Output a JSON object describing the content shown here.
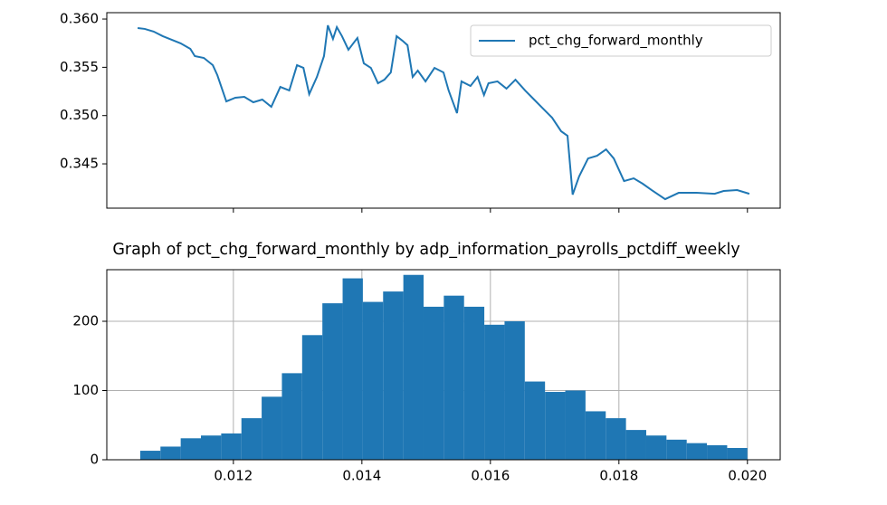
{
  "chart_data": [
    {
      "type": "line",
      "xlim": [
        0.01003,
        0.02051
      ],
      "ylim": [
        0.34041,
        0.36066
      ],
      "xticks": [
        0.012,
        0.014,
        0.016,
        0.018,
        0.02
      ],
      "yticks": [
        0.345,
        {
          "value": 0.35,
          "label": "0.350"
        },
        0.355,
        {
          "value": 0.36,
          "label": "0.360"
        }
      ],
      "legend": "upper right",
      "series": [
        {
          "name": "pct_chg_forward_monthly",
          "color": "#1f77b4",
          "x": [
            0.01051,
            0.01062,
            0.01076,
            0.0109,
            0.01104,
            0.01118,
            0.01133,
            0.0114,
            0.01154,
            0.01168,
            0.01175,
            0.01189,
            0.01203,
            0.01217,
            0.01231,
            0.01245,
            0.01259,
            0.01273,
            0.01287,
            0.01299,
            0.01309,
            0.01318,
            0.0133,
            0.01341,
            0.01347,
            0.01355,
            0.01361,
            0.01369,
            0.01379,
            0.01393,
            0.01403,
            0.01414,
            0.01425,
            0.01435,
            0.01445,
            0.01454,
            0.01463,
            0.01471,
            0.01479,
            0.01487,
            0.01499,
            0.01513,
            0.01527,
            0.01535,
            0.01548,
            0.01555,
            0.01569,
            0.0158,
            0.0159,
            0.01597,
            0.01611,
            0.01625,
            0.01639,
            0.01654,
            0.01668,
            0.01682,
            0.01696,
            0.0171,
            0.0172,
            0.01728,
            0.01738,
            0.01752,
            0.01766,
            0.0178,
            0.01792,
            0.01808,
            0.01823,
            0.01837,
            0.01851,
            0.01872,
            0.01893,
            0.01921,
            0.01949,
            0.01963,
            0.01984,
            0.02003
          ],
          "values": [
            0.35907,
            0.35898,
            0.3587,
            0.35823,
            0.35785,
            0.35748,
            0.35691,
            0.35616,
            0.35597,
            0.35522,
            0.35419,
            0.35147,
            0.35185,
            0.35194,
            0.35138,
            0.35166,
            0.35091,
            0.35297,
            0.3526,
            0.35522,
            0.35494,
            0.35222,
            0.354,
            0.35616,
            0.35935,
            0.35794,
            0.35916,
            0.35823,
            0.35682,
            0.35804,
            0.35541,
            0.35494,
            0.35335,
            0.35372,
            0.35447,
            0.35823,
            0.35776,
            0.35729,
            0.354,
            0.35466,
            0.35354,
            0.35494,
            0.35447,
            0.3526,
            0.35025,
            0.35354,
            0.35307,
            0.354,
            0.35213,
            0.35335,
            0.35354,
            0.35279,
            0.35372,
            0.3526,
            0.35166,
            0.35072,
            0.34978,
            0.34838,
            0.34791,
            0.34181,
            0.34369,
            0.34556,
            0.34584,
            0.3465,
            0.34556,
            0.34322,
            0.3435,
            0.34294,
            0.34228,
            0.34134,
            0.342,
            0.342,
            0.3419,
            0.34219,
            0.34228,
            0.3419
          ]
        }
      ]
    },
    {
      "type": "histogram",
      "title": "Graph of pct_chg_forward_monthly by adp_information_payrolls_pctdiff_weekly",
      "color": "#1f77b4",
      "grid": true,
      "xlim": [
        0.01003,
        0.02051
      ],
      "ylim": [
        0,
        274.5
      ],
      "xticks": [
        0.012,
        0.014,
        0.016,
        0.018,
        {
          "value": 0.02,
          "label": "0.020"
        }
      ],
      "yticks": [
        0,
        100,
        200
      ],
      "bins": [
        0.01055,
        0.010865,
        0.01118,
        0.011495,
        0.01181,
        0.012125,
        0.01244,
        0.012755,
        0.01307,
        0.013385,
        0.0137,
        0.014015,
        0.01433,
        0.014645,
        0.01496,
        0.015275,
        0.01559,
        0.015905,
        0.01622,
        0.016535,
        0.01685,
        0.017165,
        0.01748,
        0.017795,
        0.01811,
        0.018425,
        0.01874,
        0.019055,
        0.01937,
        0.019685,
        0.02
      ],
      "values": [
        13,
        19,
        31,
        35,
        38,
        60,
        91,
        125,
        180,
        226,
        262,
        228,
        243,
        267,
        221,
        237,
        221,
        195,
        200,
        113,
        98,
        100,
        70,
        60,
        43,
        35,
        29,
        24,
        21,
        17
      ]
    }
  ]
}
